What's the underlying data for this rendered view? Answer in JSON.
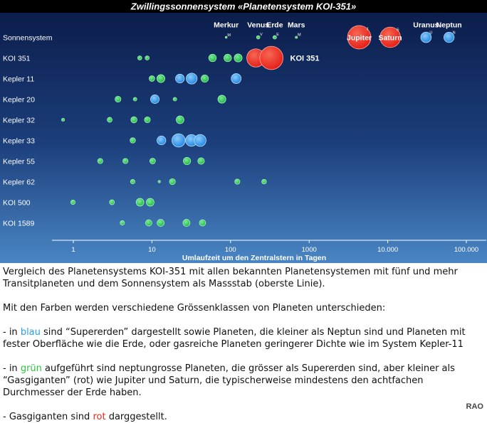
{
  "chart_data": {
    "type": "scatter",
    "title": "Zwillingssonnensystem «Planetensystem KOI-351»",
    "xlabel": "Umlaufzeit um den Zentralstern in Tagen",
    "x_scale": "log",
    "xlim": [
      0.6,
      130000
    ],
    "x_ticks": [
      {
        "value": 1,
        "label": "1"
      },
      {
        "value": 10,
        "label": "10"
      },
      {
        "value": 100,
        "label": "100"
      },
      {
        "value": 1000,
        "label": "1000"
      },
      {
        "value": 10000,
        "label": "10.000"
      },
      {
        "value": 100000,
        "label": "100.000"
      }
    ],
    "categories": [
      "Sonnensystem",
      "KOI 351",
      "Kepler 11",
      "Kepler 20",
      "Kepler 32",
      "Kepler 33",
      "Kepler 55",
      "Kepler 62",
      "KOI 500",
      "KOI 1589"
    ],
    "colors": {
      "green": "#2fd24a",
      "blue": "#2f9df0",
      "red": "#ff2a1c",
      "background_top": "#0a1a46",
      "background_bottom": "#4a86c4"
    },
    "series": [
      {
        "system": "Sonnensystem",
        "planets": [
          {
            "period": 88,
            "size": 0.38,
            "class": "green",
            "letter": "M",
            "name": "Merkur"
          },
          {
            "period": 225,
            "size": 0.95,
            "class": "green",
            "letter": "V",
            "name": "Venus"
          },
          {
            "period": 365,
            "size": 1.0,
            "class": "green",
            "letter": "E",
            "name": "Erde"
          },
          {
            "period": 687,
            "size": 0.53,
            "class": "green",
            "letter": "M",
            "name": "Mars"
          },
          {
            "period": 4333,
            "size": 11.2,
            "class": "red",
            "letter": "J",
            "name": "Jupiter"
          },
          {
            "period": 10759,
            "size": 9.4,
            "class": "red",
            "letter": "S",
            "name": "Saturn"
          },
          {
            "period": 30687,
            "size": 4.0,
            "class": "blue",
            "letter": "U",
            "name": "Uranus"
          },
          {
            "period": 60190,
            "size": 3.9,
            "class": "blue",
            "letter": "N",
            "name": "Neptun"
          }
        ]
      },
      {
        "system": "KOI 351",
        "label": "KOI 351",
        "planets": [
          {
            "period": 7,
            "size": 1.2,
            "class": "green"
          },
          {
            "period": 8.7,
            "size": 1.2,
            "class": "green"
          },
          {
            "period": 59,
            "size": 2.6,
            "class": "green"
          },
          {
            "period": 92,
            "size": 2.6,
            "class": "green"
          },
          {
            "period": 125,
            "size": 2.8,
            "class": "green"
          },
          {
            "period": 210,
            "size": 8.1,
            "class": "red"
          },
          {
            "period": 331,
            "size": 11.1,
            "class": "red"
          }
        ]
      },
      {
        "system": "Kepler 11",
        "planets": [
          {
            "period": 10,
            "size": 1.8,
            "class": "green"
          },
          {
            "period": 13,
            "size": 2.8,
            "class": "green"
          },
          {
            "period": 22.7,
            "size": 3.2,
            "class": "blue"
          },
          {
            "period": 32,
            "size": 4.2,
            "class": "blue"
          },
          {
            "period": 47,
            "size": 2.5,
            "class": "green"
          },
          {
            "period": 118,
            "size": 3.7,
            "class": "blue"
          }
        ]
      },
      {
        "system": "Kepler 20",
        "planets": [
          {
            "period": 3.7,
            "size": 1.9,
            "class": "green"
          },
          {
            "period": 6.1,
            "size": 1.0,
            "class": "green"
          },
          {
            "period": 10.9,
            "size": 3.1,
            "class": "blue"
          },
          {
            "period": 19.6,
            "size": 1.0,
            "class": "green"
          },
          {
            "period": 77.6,
            "size": 2.8,
            "class": "green"
          }
        ]
      },
      {
        "system": "Kepler 32",
        "planets": [
          {
            "period": 0.74,
            "size": 0.8,
            "class": "green"
          },
          {
            "period": 2.9,
            "size": 1.5,
            "class": "green"
          },
          {
            "period": 5.9,
            "size": 2.0,
            "class": "green"
          },
          {
            "period": 8.75,
            "size": 1.9,
            "class": "green"
          },
          {
            "period": 22.8,
            "size": 2.7,
            "class": "green"
          }
        ]
      },
      {
        "system": "Kepler 33",
        "planets": [
          {
            "period": 5.7,
            "size": 1.7,
            "class": "green"
          },
          {
            "period": 13.2,
            "size": 3.2,
            "class": "blue"
          },
          {
            "period": 21.8,
            "size": 5.4,
            "class": "blue"
          },
          {
            "period": 31.8,
            "size": 4.6,
            "class": "blue"
          },
          {
            "period": 41,
            "size": 4.7,
            "class": "blue"
          }
        ]
      },
      {
        "system": "Kepler 55",
        "planets": [
          {
            "period": 2.2,
            "size": 1.6,
            "class": "green"
          },
          {
            "period": 4.6,
            "size": 1.6,
            "class": "green"
          },
          {
            "period": 10.2,
            "size": 1.8,
            "class": "green"
          },
          {
            "period": 27.9,
            "size": 2.5,
            "class": "green"
          },
          {
            "period": 42.2,
            "size": 2.2,
            "class": "green"
          }
        ]
      },
      {
        "system": "Kepler 62",
        "planets": [
          {
            "period": 5.7,
            "size": 1.3,
            "class": "green"
          },
          {
            "period": 12.4,
            "size": 0.6,
            "class": "green"
          },
          {
            "period": 18.2,
            "size": 1.9,
            "class": "green"
          },
          {
            "period": 122,
            "size": 1.6,
            "class": "green"
          },
          {
            "period": 267,
            "size": 1.4,
            "class": "green"
          }
        ]
      },
      {
        "system": "KOI 500",
        "planets": [
          {
            "period": 0.99,
            "size": 1.3,
            "class": "green"
          },
          {
            "period": 3.1,
            "size": 1.5,
            "class": "green"
          },
          {
            "period": 7.05,
            "size": 2.7,
            "class": "green"
          },
          {
            "period": 9.5,
            "size": 2.7,
            "class": "green"
          }
        ]
      },
      {
        "system": "KOI 1589",
        "planets": [
          {
            "period": 4.2,
            "size": 1.3,
            "class": "green"
          },
          {
            "period": 9.1,
            "size": 2.1,
            "class": "green"
          },
          {
            "period": 12.9,
            "size": 2.4,
            "class": "green"
          },
          {
            "period": 27.5,
            "size": 2.4,
            "class": "green"
          },
          {
            "period": 44,
            "size": 2.1,
            "class": "green"
          }
        ]
      }
    ]
  },
  "caption": {
    "intro": "Vergleich des Planetensystems KOI-351 mit allen bekannten Planetensystemen mit fünf und mehr Transitplaneten und dem Sonnensystem als Massstab (oberste Linie).",
    "colors_note": "Mit den Farben werden verschiedene Grössenklassen von Planeten unterschieden:",
    "blue_pre": "- in ",
    "blue_word": "blau",
    "blue_post": " sind “Supererden” dargestellt  sowie Planeten, die kleiner als Neptun sind und Planeten mit fester Oberfläche wie die Erde, oder gasreiche Planeten geringerer Dichte wie im System Kepler-11",
    "green_pre": "- in ",
    "green_word": "grün",
    "green_post": " aufgeführt sind neptungrosse Planeten, die grösser als Supererden sind, aber kleiner als “Gasgiganten” (rot) wie Jupiter und Saturn, die typischerweise mindestens den achtfachen Durchmesser der Erde haben.",
    "red_pre": "- Gasgiganten sind ",
    "red_word": "rot",
    "red_post": " darggestellt."
  },
  "credit": "RAO"
}
